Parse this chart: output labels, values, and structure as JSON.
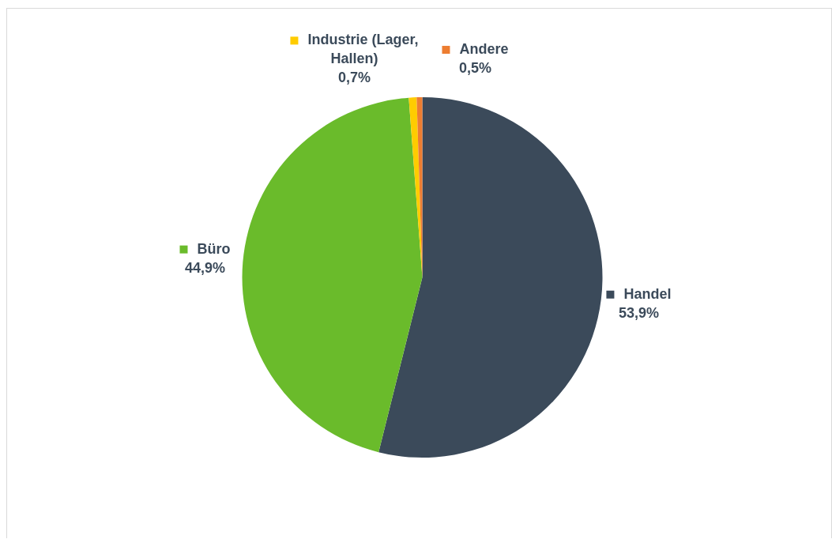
{
  "chart_data": {
    "type": "pie",
    "categories": [
      "Handel",
      "Büro",
      "Industrie (Lager, Hallen)",
      "Andere"
    ],
    "values": [
      53.9,
      44.9,
      0.7,
      0.5
    ],
    "colors": [
      "#3b4a5a",
      "#6abb2b",
      "#ffcc00",
      "#ed7d31"
    ],
    "value_labels": [
      "53,9%",
      "44,9%",
      "0,7%",
      "0,5%"
    ],
    "legend": "top"
  }
}
